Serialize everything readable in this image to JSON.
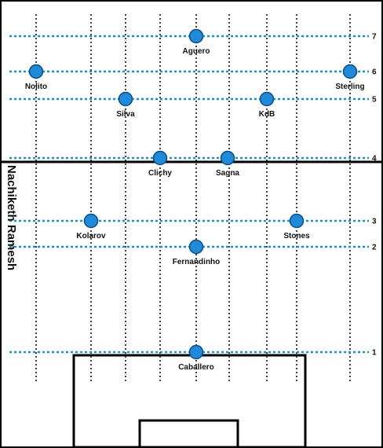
{
  "author": "Nachiketh Ramesh",
  "colors": {
    "player_fill": "#1f8ad8",
    "player_stroke": "#0a4d8c",
    "row_line": "#1d8fd0",
    "column_line": "#000000",
    "pitch_line": "#000000"
  },
  "rows": [
    {
      "label": "7"
    },
    {
      "label": "6"
    },
    {
      "label": "5"
    },
    {
      "label": "4"
    },
    {
      "label": "3"
    },
    {
      "label": "2"
    },
    {
      "label": "1"
    }
  ],
  "players": [
    {
      "name": "Aguero",
      "row": "7"
    },
    {
      "name": "Nolito",
      "row": "6"
    },
    {
      "name": "Sterling",
      "row": "6"
    },
    {
      "name": "Silva",
      "row": "5"
    },
    {
      "name": "KdB",
      "row": "5"
    },
    {
      "name": "Clichy",
      "row": "4"
    },
    {
      "name": "Sagna",
      "row": "4"
    },
    {
      "name": "Kolarov",
      "row": "3"
    },
    {
      "name": "Stones",
      "row": "3"
    },
    {
      "name": "Fernandinho",
      "row": "2"
    },
    {
      "name": "Caballero",
      "row": "1"
    }
  ]
}
